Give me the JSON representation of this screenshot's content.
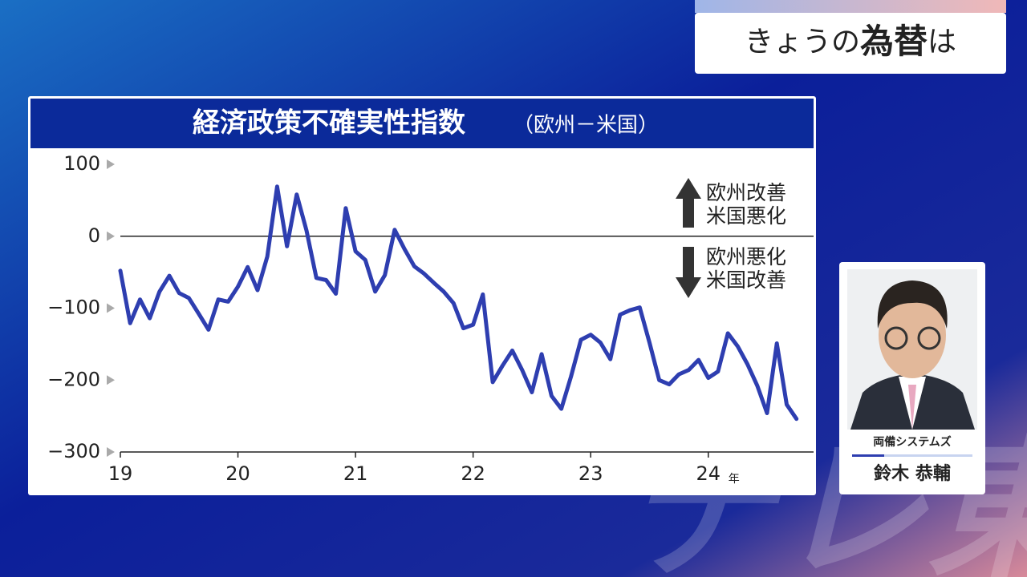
{
  "header": {
    "title": [
      "きょうの",
      "為替",
      "は"
    ]
  },
  "chart_data": {
    "type": "line",
    "title": "経済政策不確実性指数",
    "subtitle": "（欧州－米国）",
    "x_unit": "年",
    "color": "#2e3eb0",
    "x": [
      19,
      19.083,
      19.167,
      19.25,
      19.333,
      19.417,
      19.5,
      19.583,
      19.667,
      19.75,
      19.833,
      19.917,
      20,
      20.083,
      20.167,
      20.25,
      20.333,
      20.417,
      20.5,
      20.583,
      20.667,
      20.75,
      20.833,
      20.917,
      21,
      21.083,
      21.167,
      21.25,
      21.333,
      21.417,
      21.5,
      21.583,
      21.667,
      21.75,
      21.833,
      21.917,
      22,
      22.083,
      22.167,
      22.25,
      22.333,
      22.417,
      22.5,
      22.583,
      22.667,
      22.75,
      22.833,
      22.917,
      23,
      23.083,
      23.167,
      23.25,
      23.333,
      23.417,
      23.5,
      23.583,
      23.667,
      23.75,
      23.833,
      23.917,
      24,
      24.083,
      24.167,
      24.25,
      24.333,
      24.417,
      24.5,
      24.583,
      24.667,
      24.75
    ],
    "values": [
      -48,
      -121,
      -88,
      -114,
      -77,
      -55,
      -79,
      -86,
      -108,
      -130,
      -88,
      -91,
      -70,
      -43,
      -75,
      -28,
      69,
      -14,
      58,
      8,
      -58,
      -61,
      -80,
      39,
      -21,
      -33,
      -77,
      -54,
      9,
      -18,
      -42,
      -52,
      -65,
      -77,
      -93,
      -128,
      -123,
      -81,
      -203,
      -180,
      -159,
      -186,
      -217,
      -164,
      -222,
      -240,
      -195,
      -144,
      -137,
      -148,
      -171,
      -109,
      -103,
      -99,
      -148,
      -200,
      -206,
      -192,
      -186,
      -172,
      -197,
      -188,
      -135,
      -153,
      -178,
      -208,
      -246,
      -149,
      -234,
      -254
    ],
    "xlim": [
      19,
      24.8
    ],
    "xticks": [
      19,
      20,
      21,
      22,
      23,
      24
    ],
    "ylim": [
      -300,
      100
    ],
    "yticks": [
      100,
      0,
      {
        "value": -100,
        "label": "−100"
      },
      {
        "value": -200,
        "label": "−200"
      },
      {
        "value": -300,
        "label": "−300"
      }
    ],
    "annotations": [
      {
        "direction": "up",
        "lines": [
          "欧州改善",
          "米国悪化"
        ]
      },
      {
        "direction": "down",
        "lines": [
          "欧州悪化",
          "米国改善"
        ]
      }
    ]
  },
  "presenter": {
    "company": "両備システムズ",
    "name": "鈴木 恭輔"
  },
  "watermark": "テレ東"
}
